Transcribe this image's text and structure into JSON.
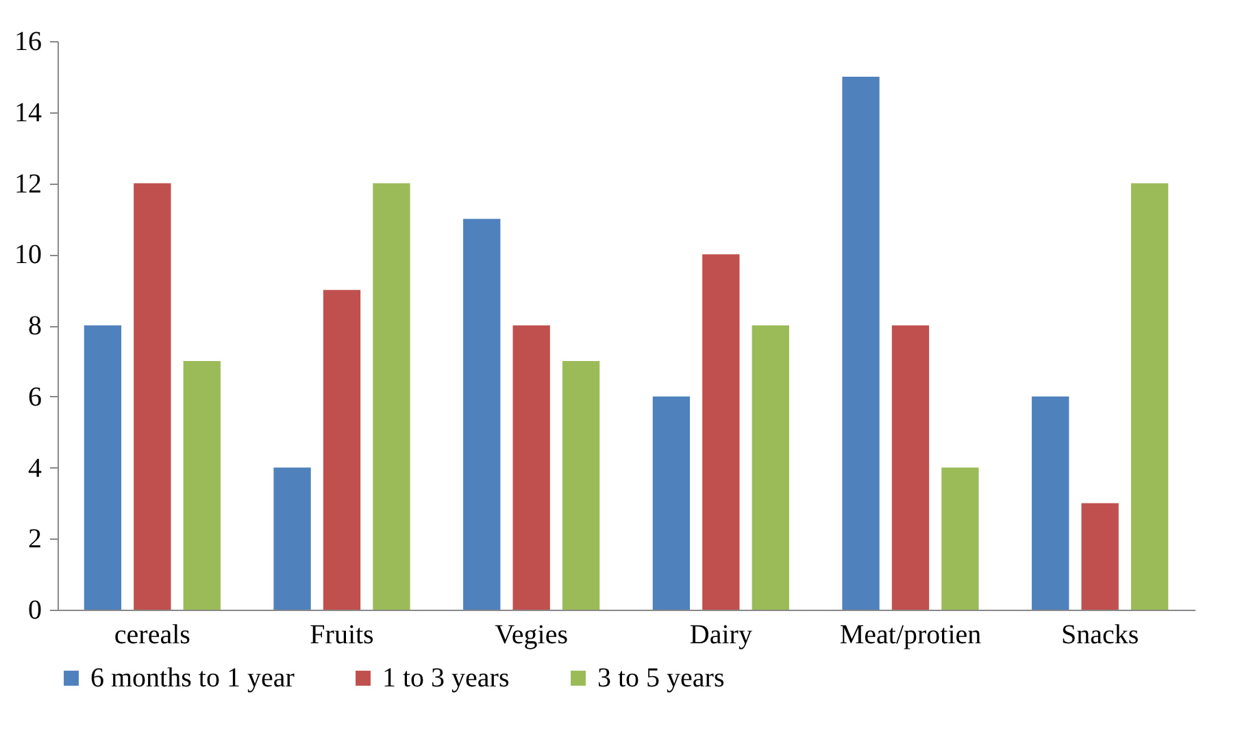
{
  "chart_data": {
    "type": "bar",
    "categories": [
      "cereals",
      "Fruits",
      "Vegies",
      "Dairy",
      "Meat/protien",
      "Snacks"
    ],
    "series": [
      {
        "name": "6 months to 1 year",
        "color": "#4f81bd",
        "values": [
          8,
          4,
          11,
          6,
          15,
          6
        ]
      },
      {
        "name": "1 to 3 years",
        "color": "#c0504d",
        "values": [
          12,
          9,
          8,
          10,
          8,
          3
        ]
      },
      {
        "name": "3 to 5 years",
        "color": "#9bbb59",
        "values": [
          7,
          12,
          7,
          8,
          4,
          12
        ]
      }
    ],
    "ylim": [
      0,
      16
    ],
    "yticks": [
      0,
      2,
      4,
      6,
      8,
      10,
      12,
      14,
      16
    ],
    "grid": false,
    "legend": "bottom"
  }
}
